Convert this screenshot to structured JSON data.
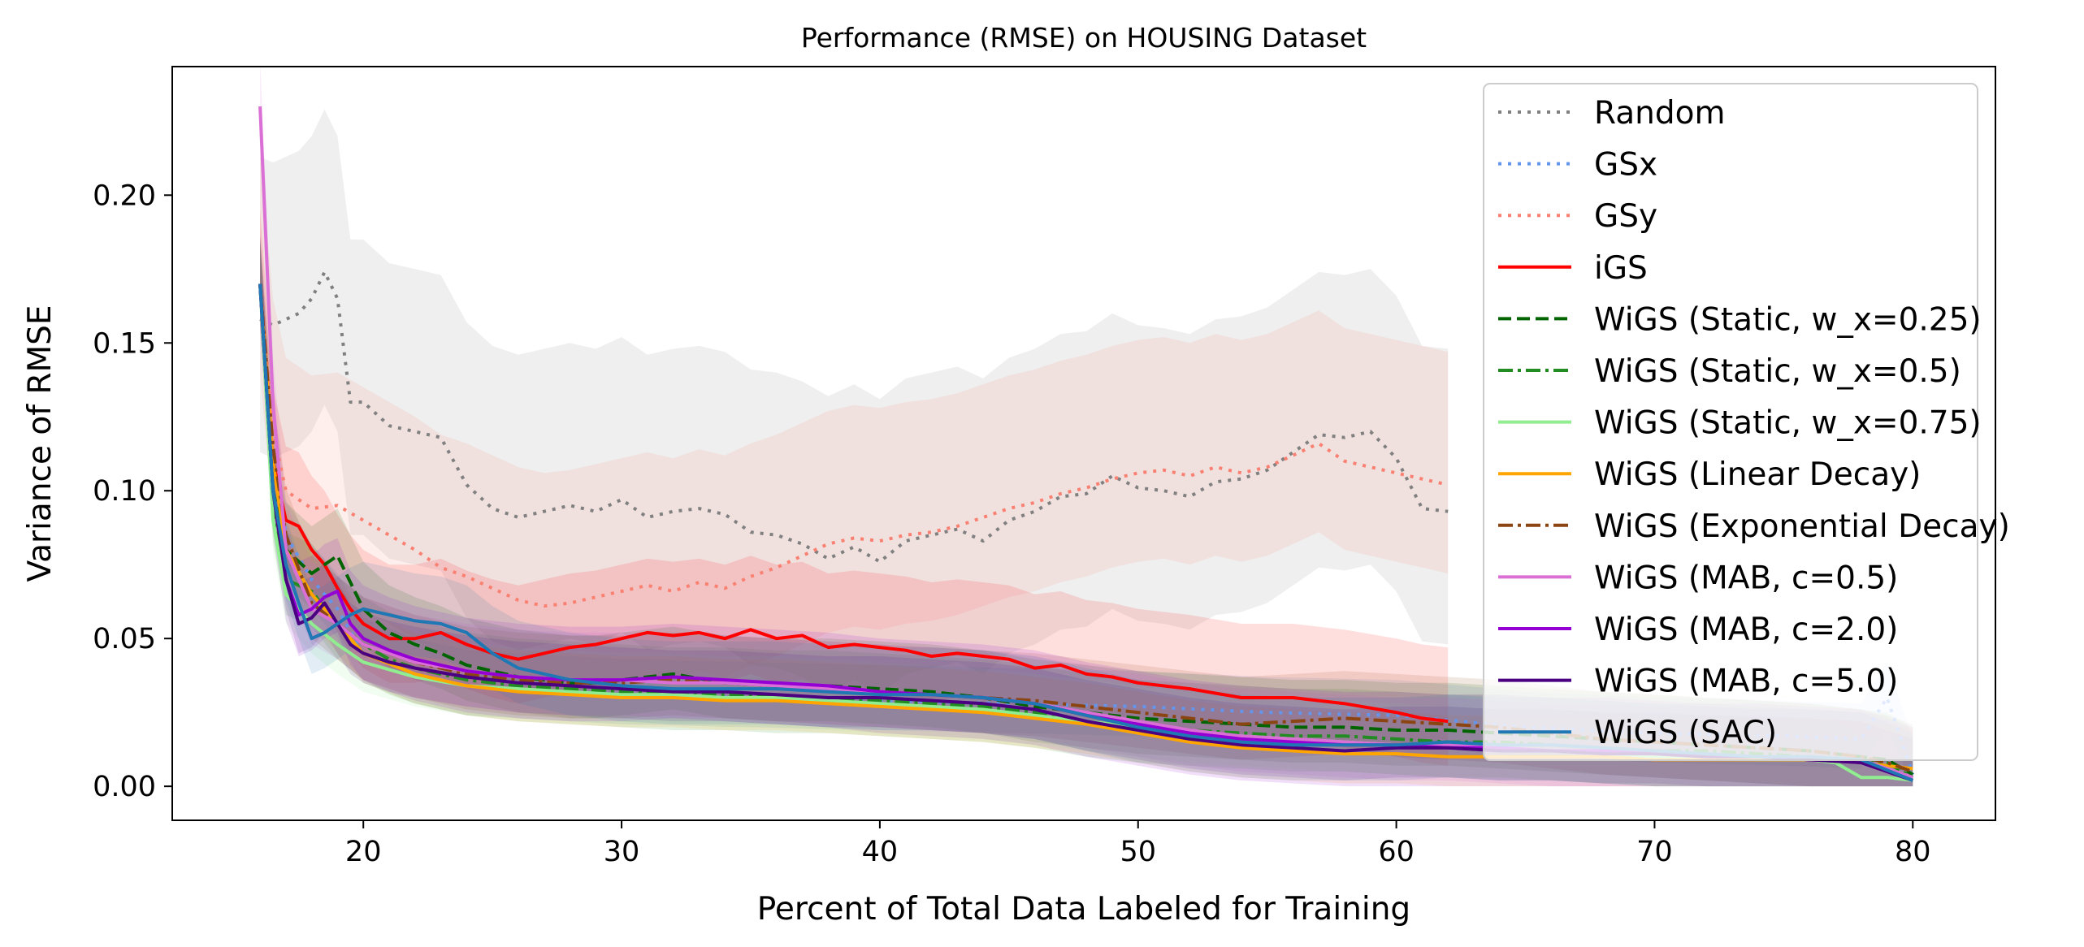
{
  "chart_data": {
    "type": "line",
    "title": "Performance (RMSE) on HOUSING Dataset",
    "xlabel": "Percent of Total Data Labeled for Training",
    "ylabel": "Variance of RMSE",
    "xlim": [
      12.6,
      83.2
    ],
    "ylim": [
      -0.0115,
      0.2435
    ],
    "xticks": [
      20,
      30,
      40,
      50,
      60,
      70,
      80
    ],
    "xtick_labels": [
      "20",
      "30",
      "40",
      "50",
      "60",
      "70",
      "80"
    ],
    "yticks": [
      0.0,
      0.05,
      0.1,
      0.15,
      0.2
    ],
    "ytick_labels": [
      "0.00",
      "0.05",
      "0.10",
      "0.15",
      "0.20"
    ],
    "grid": false,
    "legend_position": "top-right",
    "bands": "shaded variance band around each series",
    "series": [
      {
        "name": "Random",
        "color": "#808080",
        "style": "dotted",
        "band": [
          0.045,
          0.055
        ],
        "x": [
          16,
          16.5,
          17,
          17.5,
          18,
          18.5,
          19,
          19.5,
          20,
          21,
          22,
          23,
          24,
          25,
          26,
          27,
          28,
          29,
          30,
          31,
          32,
          33,
          34,
          35,
          36,
          37,
          38,
          39,
          40,
          41,
          42,
          43,
          44,
          45,
          46,
          47,
          48,
          49,
          50,
          51,
          52,
          53,
          54,
          55,
          56,
          57,
          58,
          59,
          60,
          61,
          62
        ],
        "y": [
          0.158,
          0.156,
          0.158,
          0.16,
          0.165,
          0.174,
          0.165,
          0.13,
          0.13,
          0.122,
          0.12,
          0.118,
          0.102,
          0.094,
          0.091,
          0.093,
          0.095,
          0.093,
          0.097,
          0.091,
          0.093,
          0.094,
          0.092,
          0.086,
          0.085,
          0.082,
          0.077,
          0.081,
          0.076,
          0.083,
          0.085,
          0.087,
          0.083,
          0.09,
          0.093,
          0.098,
          0.099,
          0.105,
          0.101,
          0.1,
          0.098,
          0.103,
          0.104,
          0.107,
          0.113,
          0.119,
          0.118,
          0.12,
          0.111,
          0.094,
          0.093
        ]
      },
      {
        "name": "GSx",
        "color": "#6495ed",
        "style": "dotted",
        "band": [
          0.01,
          0.012
        ],
        "x": [
          16,
          16.5,
          17,
          18,
          19,
          20,
          22,
          24,
          26,
          28,
          30,
          35,
          40,
          45,
          50,
          55,
          60,
          65,
          70,
          75,
          78,
          79,
          80
        ],
        "y": [
          0.17,
          0.12,
          0.085,
          0.07,
          0.06,
          0.045,
          0.038,
          0.034,
          0.033,
          0.032,
          0.031,
          0.03,
          0.029,
          0.028,
          0.027,
          0.025,
          0.024,
          0.02,
          0.018,
          0.017,
          0.016,
          0.03,
          0.004
        ]
      },
      {
        "name": "GSy",
        "color": "#fa8072",
        "style": "dotted",
        "band": [
          0.03,
          0.045
        ],
        "x": [
          16,
          16.5,
          17,
          18,
          19,
          20,
          21,
          22,
          23,
          24,
          25,
          26,
          27,
          28,
          29,
          30,
          31,
          32,
          33,
          34,
          35,
          36,
          37,
          38,
          39,
          40,
          41,
          42,
          43,
          44,
          45,
          46,
          47,
          48,
          49,
          50,
          51,
          52,
          53,
          54,
          55,
          56,
          57,
          58,
          59,
          60,
          61,
          62
        ],
        "y": [
          0.17,
          0.12,
          0.1,
          0.094,
          0.095,
          0.09,
          0.085,
          0.08,
          0.074,
          0.071,
          0.067,
          0.063,
          0.061,
          0.062,
          0.064,
          0.066,
          0.068,
          0.066,
          0.069,
          0.067,
          0.071,
          0.074,
          0.078,
          0.082,
          0.084,
          0.083,
          0.085,
          0.086,
          0.088,
          0.091,
          0.094,
          0.096,
          0.099,
          0.101,
          0.104,
          0.106,
          0.107,
          0.105,
          0.108,
          0.106,
          0.108,
          0.112,
          0.116,
          0.11,
          0.108,
          0.106,
          0.104,
          0.102
        ]
      },
      {
        "name": "iGS",
        "color": "#ff0000",
        "style": "solid",
        "band": [
          0.015,
          0.025
        ],
        "x": [
          16,
          16.5,
          17,
          17.5,
          18,
          18.5,
          19,
          19.5,
          20,
          21,
          22,
          23,
          24,
          25,
          26,
          27,
          28,
          29,
          30,
          31,
          32,
          33,
          34,
          35,
          36,
          37,
          38,
          39,
          40,
          41,
          42,
          43,
          44,
          45,
          46,
          47,
          48,
          49,
          50,
          52,
          54,
          56,
          58,
          60,
          61,
          62
        ],
        "y": [
          0.17,
          0.11,
          0.09,
          0.088,
          0.08,
          0.075,
          0.067,
          0.06,
          0.055,
          0.05,
          0.05,
          0.052,
          0.048,
          0.045,
          0.043,
          0.045,
          0.047,
          0.048,
          0.05,
          0.052,
          0.051,
          0.052,
          0.05,
          0.053,
          0.05,
          0.051,
          0.047,
          0.048,
          0.047,
          0.046,
          0.044,
          0.045,
          0.044,
          0.043,
          0.04,
          0.041,
          0.038,
          0.037,
          0.035,
          0.033,
          0.03,
          0.03,
          0.028,
          0.025,
          0.023,
          0.022
        ]
      },
      {
        "name": "WiGS (Static, w_x=0.25)",
        "color": "#006400",
        "style": "dashed",
        "band": [
          0.012,
          0.016
        ],
        "x": [
          16,
          16.5,
          17,
          18,
          19,
          20,
          21,
          22,
          23,
          24,
          25,
          26,
          27,
          28,
          29,
          30,
          32,
          34,
          36,
          38,
          40,
          42,
          44,
          46,
          48,
          50,
          52,
          54,
          56,
          58,
          60,
          62,
          64,
          66,
          68,
          70,
          72,
          74,
          76,
          78,
          79,
          80
        ],
        "y": [
          0.17,
          0.1,
          0.08,
          0.072,
          0.078,
          0.06,
          0.052,
          0.048,
          0.045,
          0.041,
          0.039,
          0.037,
          0.036,
          0.035,
          0.035,
          0.036,
          0.038,
          0.035,
          0.034,
          0.034,
          0.033,
          0.032,
          0.03,
          0.027,
          0.025,
          0.023,
          0.022,
          0.021,
          0.02,
          0.02,
          0.019,
          0.019,
          0.018,
          0.017,
          0.016,
          0.015,
          0.014,
          0.013,
          0.012,
          0.01,
          0.009,
          0.004
        ]
      },
      {
        "name": "WiGS (Static, w_x=0.5)",
        "color": "#228b22",
        "style": "dashdot",
        "band": [
          0.012,
          0.016
        ],
        "x": [
          16,
          16.5,
          17,
          18,
          19,
          20,
          21,
          22,
          23,
          24,
          25,
          26,
          28,
          30,
          32,
          34,
          36,
          38,
          40,
          42,
          44,
          46,
          48,
          50,
          52,
          54,
          56,
          58,
          60,
          62,
          64,
          66,
          68,
          70,
          72,
          74,
          76,
          78,
          79,
          80
        ],
        "y": [
          0.17,
          0.095,
          0.07,
          0.066,
          0.055,
          0.048,
          0.043,
          0.04,
          0.038,
          0.036,
          0.035,
          0.034,
          0.033,
          0.032,
          0.031,
          0.031,
          0.03,
          0.03,
          0.029,
          0.028,
          0.027,
          0.025,
          0.022,
          0.02,
          0.019,
          0.018,
          0.017,
          0.017,
          0.016,
          0.015,
          0.015,
          0.014,
          0.013,
          0.012,
          0.012,
          0.011,
          0.01,
          0.009,
          0.008,
          0.003
        ]
      },
      {
        "name": "WiGS (Static, w_x=0.75)",
        "color": "#90ee90",
        "style": "solid",
        "band": [
          0.01,
          0.014
        ],
        "x": [
          16,
          16.5,
          17,
          18,
          19,
          20,
          22,
          24,
          26,
          28,
          30,
          32,
          34,
          36,
          38,
          40,
          42,
          44,
          46,
          48,
          50,
          52,
          54,
          56,
          58,
          60,
          62,
          64,
          66,
          68,
          70,
          72,
          74,
          76,
          77,
          78,
          79,
          80
        ],
        "y": [
          0.17,
          0.09,
          0.065,
          0.055,
          0.048,
          0.042,
          0.037,
          0.034,
          0.033,
          0.032,
          0.031,
          0.031,
          0.03,
          0.03,
          0.029,
          0.028,
          0.027,
          0.026,
          0.024,
          0.022,
          0.02,
          0.018,
          0.017,
          0.016,
          0.015,
          0.014,
          0.013,
          0.012,
          0.012,
          0.011,
          0.01,
          0.01,
          0.009,
          0.009,
          0.008,
          0.003,
          0.003,
          0.002
        ]
      },
      {
        "name": "WiGS (Linear Decay)",
        "color": "#ffa500",
        "style": "solid",
        "band": [
          0.01,
          0.014
        ],
        "x": [
          16,
          16.5,
          17,
          18,
          19,
          20,
          22,
          24,
          26,
          28,
          30,
          32,
          34,
          36,
          38,
          40,
          42,
          44,
          46,
          48,
          50,
          52,
          54,
          56,
          58,
          60,
          62,
          64,
          66,
          68,
          70,
          72,
          74,
          76,
          78,
          79,
          80
        ],
        "y": [
          0.17,
          0.11,
          0.08,
          0.065,
          0.055,
          0.045,
          0.038,
          0.034,
          0.032,
          0.031,
          0.03,
          0.03,
          0.029,
          0.029,
          0.028,
          0.027,
          0.026,
          0.025,
          0.023,
          0.021,
          0.018,
          0.015,
          0.013,
          0.012,
          0.011,
          0.011,
          0.01,
          0.01,
          0.01,
          0.01,
          0.009,
          0.009,
          0.009,
          0.009,
          0.008,
          0.007,
          0.006
        ]
      },
      {
        "name": "WiGS (Exponential Decay)",
        "color": "#8b4513",
        "style": "dashdot",
        "band": [
          0.012,
          0.016
        ],
        "x": [
          16,
          16.5,
          17,
          18,
          19,
          20,
          21,
          22,
          24,
          26,
          28,
          30,
          32,
          34,
          36,
          38,
          40,
          42,
          44,
          46,
          48,
          50,
          52,
          54,
          56,
          58,
          60,
          62,
          64,
          66,
          68,
          70,
          72,
          74,
          76,
          78,
          79,
          80
        ],
        "y": [
          0.17,
          0.115,
          0.085,
          0.062,
          0.055,
          0.048,
          0.045,
          0.042,
          0.038,
          0.036,
          0.035,
          0.035,
          0.036,
          0.035,
          0.034,
          0.033,
          0.032,
          0.031,
          0.03,
          0.029,
          0.027,
          0.025,
          0.023,
          0.021,
          0.022,
          0.023,
          0.022,
          0.021,
          0.02,
          0.018,
          0.016,
          0.015,
          0.014,
          0.013,
          0.012,
          0.01,
          0.008,
          0.005
        ]
      },
      {
        "name": "WiGS (MAB, c=0.5)",
        "color": "#da70d6",
        "style": "solid",
        "band": [
          0.012,
          0.016
        ],
        "x": [
          16,
          16.5,
          17,
          18,
          19,
          20,
          22,
          24,
          26,
          28,
          30,
          32,
          34,
          36,
          38,
          40,
          42,
          44,
          46,
          48,
          50,
          52,
          54,
          56,
          58,
          60,
          62,
          64,
          66,
          68,
          70,
          72,
          74,
          76,
          78,
          79,
          80
        ],
        "y": [
          0.23,
          0.13,
          0.08,
          0.06,
          0.055,
          0.048,
          0.042,
          0.039,
          0.037,
          0.036,
          0.036,
          0.035,
          0.035,
          0.034,
          0.033,
          0.032,
          0.031,
          0.03,
          0.028,
          0.025,
          0.022,
          0.019,
          0.017,
          0.016,
          0.015,
          0.014,
          0.014,
          0.013,
          0.012,
          0.012,
          0.011,
          0.011,
          0.01,
          0.01,
          0.009,
          0.006,
          0.003
        ]
      },
      {
        "name": "WiGS (MAB, c=2.0)",
        "color": "#9400d3",
        "style": "solid",
        "band": [
          0.014,
          0.018
        ],
        "x": [
          16,
          16.5,
          17,
          17.5,
          18,
          18.5,
          19,
          19.5,
          20,
          21,
          22,
          24,
          26,
          28,
          30,
          32,
          34,
          36,
          38,
          40,
          42,
          44,
          46,
          48,
          50,
          52,
          54,
          56,
          58,
          60,
          62,
          64,
          66,
          68,
          70,
          72,
          74,
          76,
          78,
          80
        ],
        "y": [
          0.17,
          0.1,
          0.07,
          0.058,
          0.06,
          0.064,
          0.066,
          0.055,
          0.05,
          0.046,
          0.043,
          0.039,
          0.037,
          0.036,
          0.036,
          0.037,
          0.036,
          0.035,
          0.034,
          0.032,
          0.031,
          0.03,
          0.028,
          0.024,
          0.021,
          0.018,
          0.016,
          0.015,
          0.014,
          0.014,
          0.013,
          0.013,
          0.012,
          0.012,
          0.011,
          0.01,
          0.01,
          0.009,
          0.008,
          0.002
        ]
      },
      {
        "name": "WiGS (MAB, c=5.0)",
        "color": "#4b0082",
        "style": "solid",
        "band": [
          0.01,
          0.014
        ],
        "x": [
          16,
          16.5,
          17,
          17.5,
          18,
          18.5,
          19,
          19.5,
          20,
          21,
          22,
          24,
          26,
          28,
          30,
          32,
          34,
          36,
          38,
          40,
          42,
          44,
          46,
          48,
          50,
          52,
          54,
          56,
          58,
          60,
          62,
          64,
          66,
          68,
          70,
          72,
          74,
          76,
          78,
          80
        ],
        "y": [
          0.17,
          0.1,
          0.07,
          0.055,
          0.057,
          0.062,
          0.055,
          0.048,
          0.045,
          0.042,
          0.04,
          0.037,
          0.035,
          0.034,
          0.033,
          0.032,
          0.032,
          0.031,
          0.03,
          0.03,
          0.029,
          0.028,
          0.026,
          0.022,
          0.019,
          0.016,
          0.014,
          0.013,
          0.012,
          0.013,
          0.013,
          0.012,
          0.012,
          0.011,
          0.011,
          0.01,
          0.01,
          0.009,
          0.008,
          0.002
        ]
      },
      {
        "name": "WiGS (SAC)",
        "color": "#1f77b4",
        "style": "solid",
        "band": [
          0.012,
          0.016
        ],
        "x": [
          16,
          16.5,
          17,
          17.5,
          18,
          18.5,
          19,
          19.5,
          20,
          21,
          22,
          23,
          24,
          25,
          26,
          28,
          30,
          32,
          34,
          36,
          38,
          40,
          42,
          44,
          46,
          48,
          50,
          52,
          54,
          56,
          58,
          60,
          62,
          64,
          66,
          68,
          70,
          72,
          74,
          76,
          78,
          80
        ],
        "y": [
          0.17,
          0.1,
          0.075,
          0.062,
          0.05,
          0.052,
          0.055,
          0.058,
          0.06,
          0.058,
          0.056,
          0.055,
          0.052,
          0.045,
          0.04,
          0.036,
          0.034,
          0.033,
          0.033,
          0.033,
          0.032,
          0.031,
          0.031,
          0.03,
          0.028,
          0.024,
          0.02,
          0.017,
          0.015,
          0.014,
          0.014,
          0.014,
          0.015,
          0.014,
          0.014,
          0.013,
          0.012,
          0.011,
          0.01,
          0.01,
          0.009,
          0.002
        ]
      }
    ]
  }
}
